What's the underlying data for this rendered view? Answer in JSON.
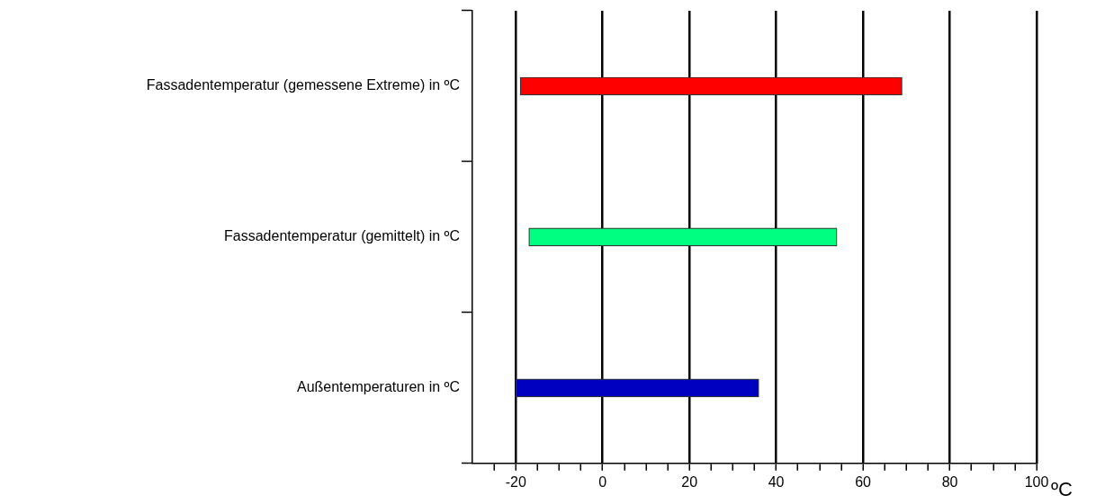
{
  "chart_data": {
    "type": "bar",
    "orientation": "horizontal",
    "categories": [
      "Fassadentemperatur (gemessene Extreme) in ºC",
      "Fassadentemperatur (gemittelt) in ºC",
      "Außentemperaturen in ºC"
    ],
    "base": [
      -19,
      -17,
      -20
    ],
    "values": [
      88,
      71,
      56
    ],
    "colors": [
      "#ff0000",
      "#00ff80",
      "#0000c0"
    ],
    "xlabel": "ºC",
    "xlim": [
      -30,
      100
    ],
    "xticks": [
      {
        "value": -25,
        "label": null
      },
      -20,
      {
        "value": -15,
        "label": null
      },
      {
        "value": -10,
        "label": null
      },
      {
        "value": -5,
        "label": null
      },
      0,
      {
        "value": 5,
        "label": null
      },
      {
        "value": 10,
        "label": null
      },
      {
        "value": 15,
        "label": null
      },
      20,
      {
        "value": 25,
        "label": null
      },
      {
        "value": 30,
        "label": null
      },
      {
        "value": 35,
        "label": null
      },
      40,
      {
        "value": 45,
        "label": null
      },
      {
        "value": 50,
        "label": null
      },
      {
        "value": 55,
        "label": null
      },
      60,
      {
        "value": 65,
        "label": null
      },
      {
        "value": 70,
        "label": null
      },
      {
        "value": 75,
        "label": null
      },
      80,
      {
        "value": 85,
        "label": null
      },
      {
        "value": 90,
        "label": null
      },
      {
        "value": 95,
        "label": null
      },
      100
    ],
    "grid": "x",
    "legend": false
  }
}
